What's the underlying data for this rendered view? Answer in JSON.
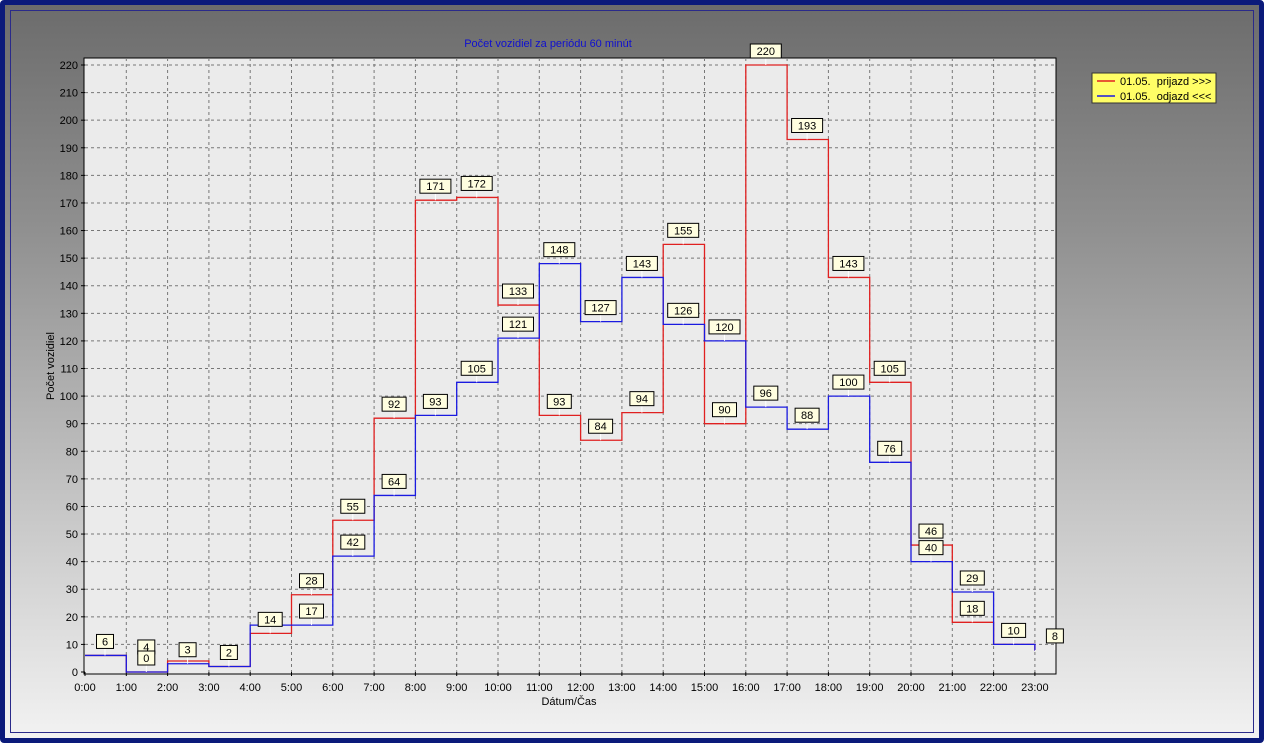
{
  "chart_data": {
    "type": "line",
    "step": true,
    "title": "Počet vozidiel za periódu 60 minút",
    "xlabel": "Dátum/Čas",
    "ylabel": "Počet vozidiel",
    "ylim": [
      0,
      225
    ],
    "yticks": [
      0,
      10,
      20,
      30,
      40,
      50,
      60,
      70,
      80,
      90,
      100,
      110,
      120,
      130,
      140,
      150,
      160,
      170,
      180,
      190,
      200,
      210,
      220
    ],
    "categories": [
      "0:00",
      "1:00",
      "2:00",
      "3:00",
      "4:00",
      "5:00",
      "6:00",
      "7:00",
      "8:00",
      "9:00",
      "10:00",
      "11:00",
      "12:00",
      "13:00",
      "14:00",
      "15:00",
      "16:00",
      "17:00",
      "18:00",
      "19:00",
      "20:00",
      "21:00",
      "22:00",
      "23:00"
    ],
    "grid": true,
    "legend_position": "top-right",
    "series": [
      {
        "name": "01.05.  prijazd >>>",
        "color": "#e02020",
        "values": [
          6,
          0,
          4,
          2,
          14,
          28,
          55,
          92,
          171,
          172,
          133,
          93,
          84,
          94,
          155,
          90,
          220,
          193,
          143,
          105,
          46,
          18,
          10,
          8
        ]
      },
      {
        "name": "01.05.  odjazd <<<",
        "color": "#1a1ae0",
        "values": [
          6,
          0,
          3,
          2,
          17,
          17,
          42,
          64,
          93,
          105,
          121,
          148,
          127,
          143,
          126,
          120,
          96,
          88,
          100,
          76,
          40,
          29,
          10,
          8
        ]
      }
    ],
    "data_labels": [
      {
        "text": "6",
        "x": 0,
        "y": 6
      },
      {
        "text": "4",
        "x": 1,
        "y": 4
      },
      {
        "text": "0",
        "x": 1,
        "y": 0
      },
      {
        "text": "3",
        "x": 2,
        "y": 3
      },
      {
        "text": "2",
        "x": 3,
        "y": 2
      },
      {
        "text": "14",
        "x": 4,
        "y": 14
      },
      {
        "text": "28",
        "x": 5,
        "y": 28
      },
      {
        "text": "17",
        "x": 5,
        "y": 17
      },
      {
        "text": "55",
        "x": 6,
        "y": 55
      },
      {
        "text": "42",
        "x": 6,
        "y": 42
      },
      {
        "text": "92",
        "x": 7,
        "y": 92
      },
      {
        "text": "64",
        "x": 7,
        "y": 64
      },
      {
        "text": "171",
        "x": 8,
        "y": 171
      },
      {
        "text": "93",
        "x": 8,
        "y": 93
      },
      {
        "text": "172",
        "x": 9,
        "y": 172
      },
      {
        "text": "105",
        "x": 9,
        "y": 105
      },
      {
        "text": "133",
        "x": 10,
        "y": 133
      },
      {
        "text": "121",
        "x": 10,
        "y": 121
      },
      {
        "text": "148",
        "x": 11,
        "y": 148
      },
      {
        "text": "93",
        "x": 11,
        "y": 93
      },
      {
        "text": "127",
        "x": 12,
        "y": 127
      },
      {
        "text": "84",
        "x": 12,
        "y": 84
      },
      {
        "text": "143",
        "x": 13,
        "y": 143
      },
      {
        "text": "94",
        "x": 13,
        "y": 94
      },
      {
        "text": "155",
        "x": 14,
        "y": 155
      },
      {
        "text": "126",
        "x": 14,
        "y": 126
      },
      {
        "text": "120",
        "x": 15,
        "y": 120
      },
      {
        "text": "90",
        "x": 15,
        "y": 90
      },
      {
        "text": "220",
        "x": 16,
        "y": 220
      },
      {
        "text": "96",
        "x": 16,
        "y": 96
      },
      {
        "text": "193",
        "x": 17,
        "y": 193
      },
      {
        "text": "88",
        "x": 17,
        "y": 88
      },
      {
        "text": "143",
        "x": 18,
        "y": 143
      },
      {
        "text": "100",
        "x": 18,
        "y": 100
      },
      {
        "text": "105",
        "x": 19,
        "y": 105
      },
      {
        "text": "76",
        "x": 19,
        "y": 76
      },
      {
        "text": "46",
        "x": 20,
        "y": 46
      },
      {
        "text": "40",
        "x": 20,
        "y": 40
      },
      {
        "text": "29",
        "x": 21,
        "y": 29
      },
      {
        "text": "18",
        "x": 21,
        "y": 18
      },
      {
        "text": "10",
        "x": 22,
        "y": 10
      },
      {
        "text": "8",
        "x": 23,
        "y": 8
      }
    ]
  }
}
